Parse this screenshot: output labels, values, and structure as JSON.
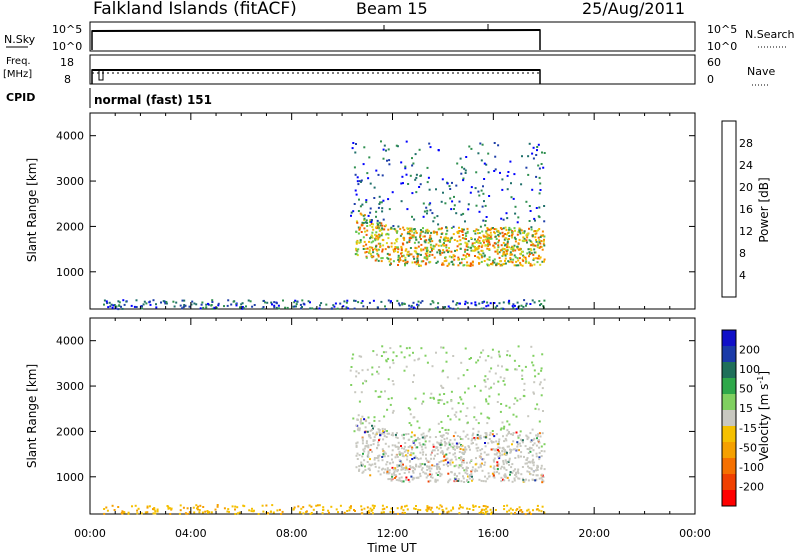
{
  "header": {
    "site": "Falkland Islands (fitACF)",
    "beam": "Beam 15",
    "date": "25/Aug/2011"
  },
  "status": {
    "nsky_label": "N.Sky",
    "nsky_ticks": [
      "10^5",
      "10^0"
    ],
    "nsearch_label": "N.Search",
    "freq_label_1": "Freq.",
    "freq_label_2": "[MHz]",
    "freq_ticks": [
      "18",
      "8"
    ],
    "nave_ticks": [
      "60",
      "0"
    ],
    "nave_label": "Nave",
    "cpid_label": "CPID",
    "cpid_text": "normal (fast) 151"
  },
  "colors": {
    "power": [
      "#0000ff",
      "#1e3fa8",
      "#1f6f6a",
      "#2f8f4f",
      "#66c84a",
      "#d8d820",
      "#f5b800",
      "#f58a00",
      "#f25a00",
      "#ff0000"
    ],
    "velocity": [
      "#1010c8",
      "#1a3aa8",
      "#1f6f5a",
      "#2fa84a",
      "#80d060",
      "#c8c8c0",
      "#f5c000",
      "#f5a000",
      "#f57000",
      "#f04000",
      "#ff0000"
    ]
  },
  "chart_data": [
    {
      "type": "heatmap",
      "name": "power-panel",
      "ylabel": "Slant Range [km]",
      "xlabel": "",
      "ylim": [
        180,
        4500
      ],
      "xlim": [
        0,
        24
      ],
      "y_ticks": [
        "1000",
        "2000",
        "3000",
        "4000"
      ],
      "colorbar": {
        "label": "Power [dB]",
        "ticks": [
          "4",
          "8",
          "12",
          "16",
          "20",
          "24",
          "28"
        ],
        "range": [
          0,
          32
        ]
      },
      "features": [
        {
          "region": "main band",
          "time_start": 10.5,
          "time_end": 18.0,
          "range_low": 1150,
          "range_high": 2000,
          "power_db": 20
        },
        {
          "region": "upper scatter",
          "time_start": 10.3,
          "time_end": 18.0,
          "range_low": 2000,
          "range_high": 3900,
          "power_db": 8
        },
        {
          "region": "near range",
          "time_start": 0.5,
          "time_end": 18.0,
          "range_low": 200,
          "range_high": 400,
          "power_db": 6
        }
      ]
    },
    {
      "type": "heatmap",
      "name": "velocity-panel",
      "ylabel": "Slant Range [km]",
      "xlabel": "Time UT",
      "ylim": [
        180,
        4500
      ],
      "xlim": [
        0,
        24
      ],
      "y_ticks": [
        "1000",
        "2000",
        "3000",
        "4000"
      ],
      "x_ticks": [
        "00:00",
        "04:00",
        "08:00",
        "12:00",
        "16:00",
        "20:00",
        "00:00"
      ],
      "colorbar": {
        "label": "Velocity",
        "unit_prefix": "m s",
        "unit_exp": "-1",
        "ticks": [
          "200",
          "100",
          "50",
          "15",
          "-15",
          "-50",
          "-100",
          "-200"
        ]
      },
      "features": [
        {
          "region": "main band",
          "time_start": 10.5,
          "time_end": 18.0,
          "range_low": 900,
          "range_high": 2000,
          "velocity": 0
        },
        {
          "region": "upper scatter",
          "time_start": 10.3,
          "time_end": 18.0,
          "range_low": 2000,
          "range_high": 3900,
          "velocity": 30
        },
        {
          "region": "near range",
          "time_start": 0.5,
          "time_end": 18.0,
          "range_low": 200,
          "range_high": 400,
          "velocity": -40
        }
      ]
    }
  ]
}
